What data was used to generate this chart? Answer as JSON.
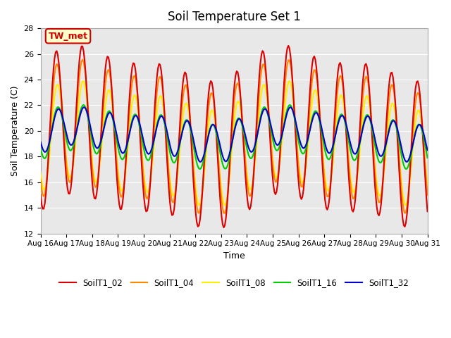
{
  "title": "Soil Temperature Set 1",
  "xlabel": "Time",
  "ylabel": "Soil Temperature (C)",
  "ylim": [
    12,
    28
  ],
  "xlim_start": "2000-08-16",
  "xlim_end": "2000-08-31",
  "xtick_labels": [
    "Aug 16",
    "Aug 17",
    "Aug 18",
    "Aug 19",
    "Aug 20",
    "Aug 21",
    "Aug 22",
    "Aug 23",
    "Aug 24",
    "Aug 25",
    "Aug 26",
    "Aug 27",
    "Aug 28",
    "Aug 29",
    "Aug 30",
    "Aug 31"
  ],
  "ytick_labels": [
    "12",
    "14",
    "16",
    "18",
    "20",
    "22",
    "24",
    "26",
    "28"
  ],
  "annotation_text": "TW_met",
  "annotation_color": "#cc0000",
  "annotation_bg": "#ffffcc",
  "annotation_border": "#cc0000",
  "line_colors": {
    "SoilT1_02": "#dd0000",
    "SoilT1_04": "#ff8800",
    "SoilT1_08": "#ffee00",
    "SoilT1_16": "#00cc00",
    "SoilT1_32": "#0000cc"
  },
  "bg_color": "#e8e8e8",
  "fig_bg_color": "#ffffff",
  "line_width": 1.5,
  "legend_entries": [
    "SoilT1_02",
    "SoilT1_04",
    "SoilT1_08",
    "SoilT1_16",
    "SoilT1_32"
  ]
}
